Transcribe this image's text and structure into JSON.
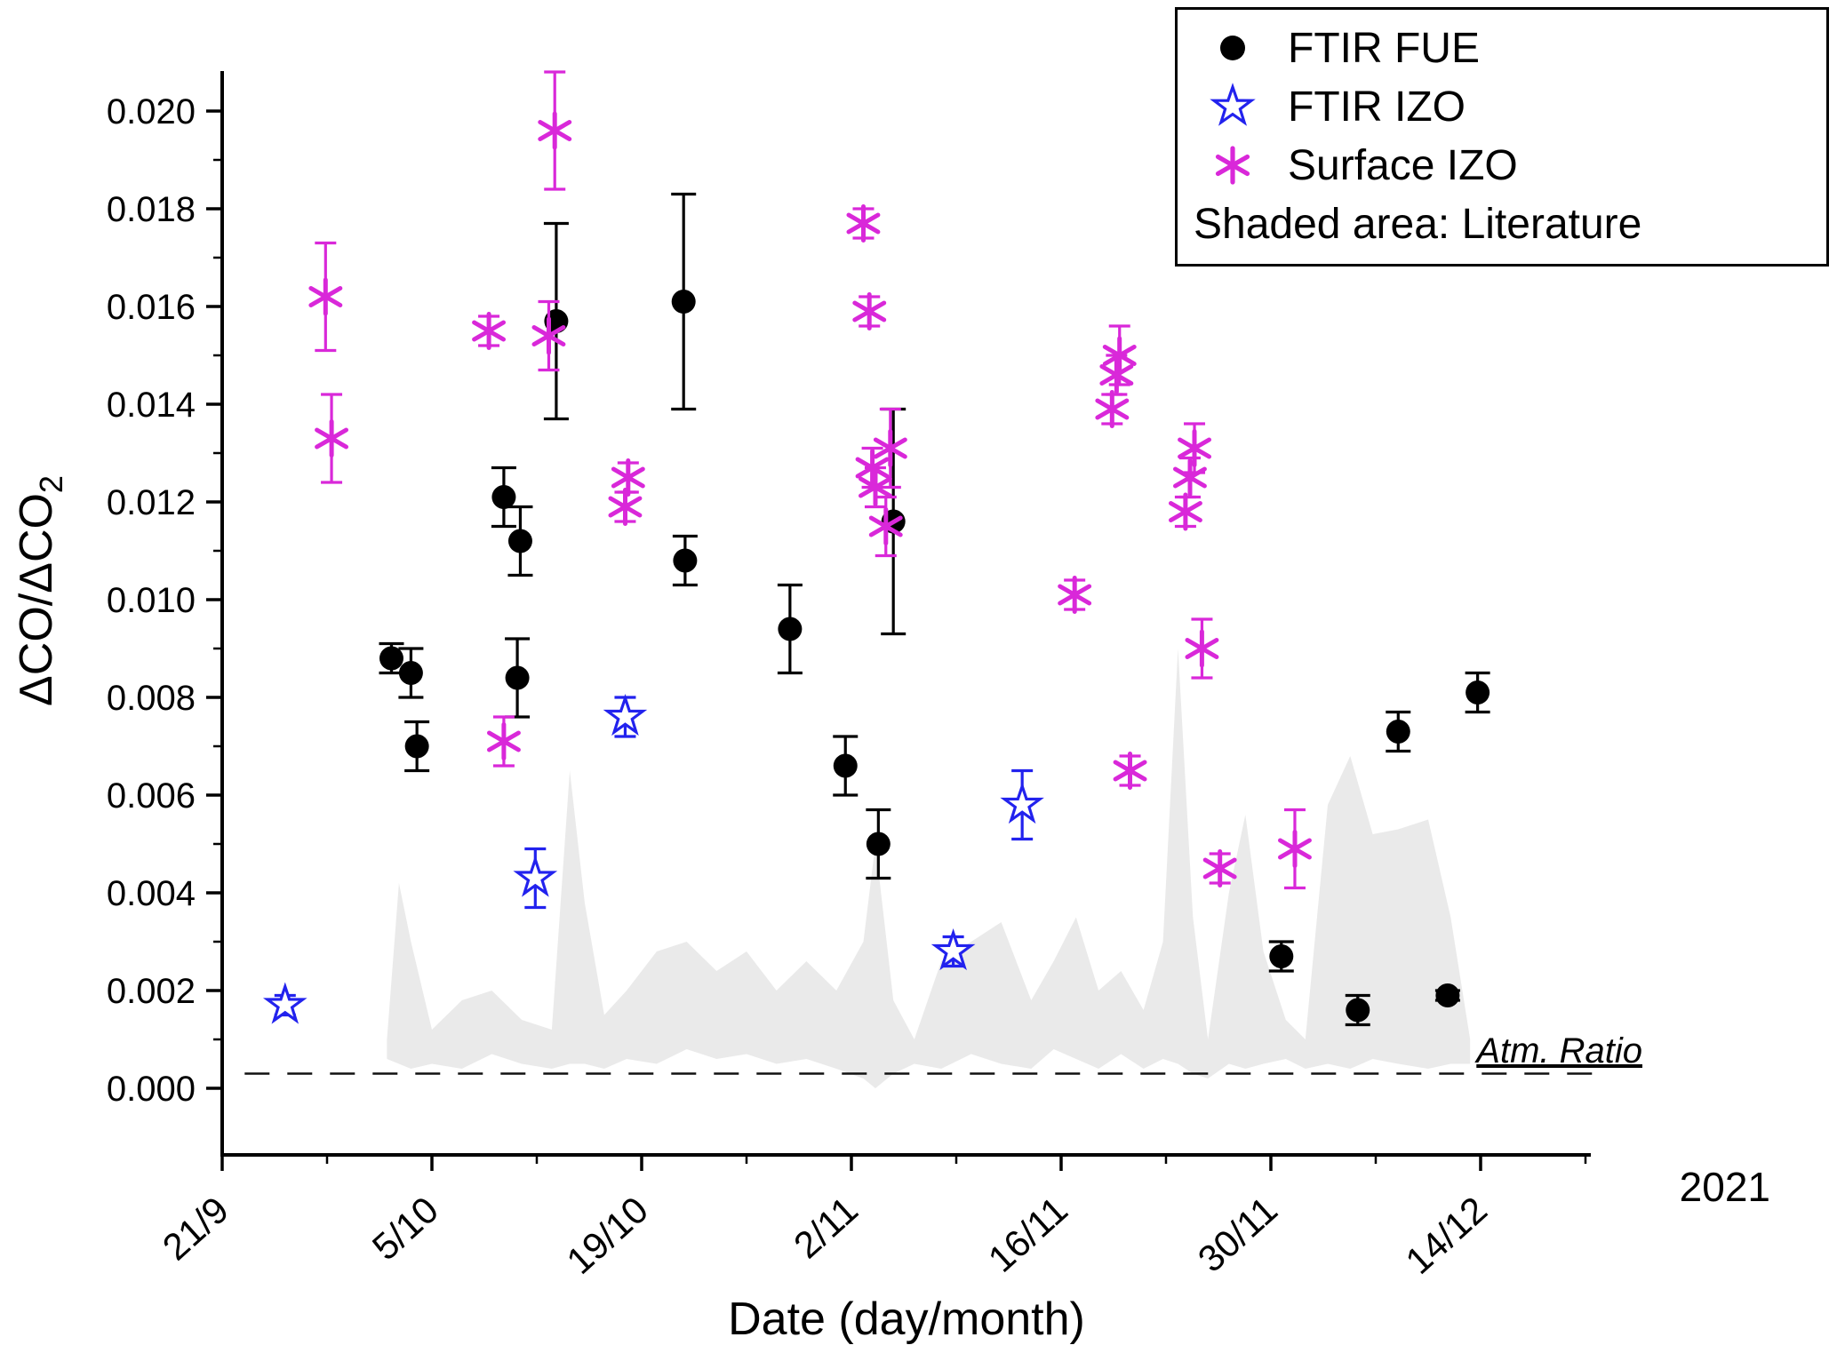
{
  "figure": {
    "year_label": "2021",
    "atm_ratio_label": "Atm. Ratio"
  },
  "axes": {
    "x_label": "Date (day/month)",
    "y_label_prefix": "ΔCO/ΔCO",
    "y_label_sub": "2"
  },
  "legend": {
    "items": [
      {
        "label": "FTIR FUE",
        "marker": "filled-circle-icon",
        "color": "#000000"
      },
      {
        "label": "FTIR IZO",
        "marker": "open-star-icon",
        "color": "#2222ee"
      },
      {
        "label": "Surface IZO",
        "marker": "asterisk-icon",
        "color": "#d928d9"
      },
      {
        "label": "Shaded area: Literature",
        "marker": "none"
      }
    ]
  },
  "chart_data": {
    "type": "scatter",
    "title": "",
    "xlabel": "Date (day/month)",
    "ylabel": "ΔCO/ΔCO2",
    "x_unit": "days since 21/9/2021",
    "ylim": [
      -0.0014,
      0.0208
    ],
    "grid": false,
    "legend_position": "top-right",
    "x_ticks": [
      {
        "day": 0,
        "label": "21/9"
      },
      {
        "day": 14,
        "label": "5/10"
      },
      {
        "day": 28,
        "label": "19/10"
      },
      {
        "day": 42,
        "label": "2/11"
      },
      {
        "day": 56,
        "label": "16/11"
      },
      {
        "day": 70,
        "label": "30/11"
      },
      {
        "day": 84,
        "label": "14/12"
      }
    ],
    "y_ticks": [
      {
        "value": 0.0,
        "label": "0.000"
      },
      {
        "value": 0.002,
        "label": "0.002"
      },
      {
        "value": 0.004,
        "label": "0.004"
      },
      {
        "value": 0.006,
        "label": "0.006"
      },
      {
        "value": 0.008,
        "label": "0.008"
      },
      {
        "value": 0.01,
        "label": "0.010"
      },
      {
        "value": 0.012,
        "label": "0.012"
      },
      {
        "value": 0.014,
        "label": "0.014"
      },
      {
        "value": 0.016,
        "label": "0.016"
      },
      {
        "value": 0.018,
        "label": "0.018"
      },
      {
        "value": 0.02,
        "label": "0.020"
      }
    ],
    "series": [
      {
        "name": "FTIR FUE",
        "marker": "filled-circle",
        "color": "#000000",
        "points": [
          {
            "day": 11.3,
            "value": 0.0088,
            "err": 0.0003
          },
          {
            "day": 12.6,
            "value": 0.0085,
            "err": 0.0005
          },
          {
            "day": 13.0,
            "value": 0.007,
            "err": 0.0005
          },
          {
            "day": 18.8,
            "value": 0.0121,
            "err": 0.0006
          },
          {
            "day": 19.7,
            "value": 0.0084,
            "err": 0.0008
          },
          {
            "day": 19.9,
            "value": 0.0112,
            "err": 0.0007
          },
          {
            "day": 22.3,
            "value": 0.0157,
            "err": 0.002
          },
          {
            "day": 30.8,
            "value": 0.0161,
            "err": 0.0022
          },
          {
            "day": 30.9,
            "value": 0.0108,
            "err": 0.0005
          },
          {
            "day": 37.9,
            "value": 0.0094,
            "err": 0.0009
          },
          {
            "day": 41.6,
            "value": 0.0066,
            "err": 0.0006
          },
          {
            "day": 43.8,
            "value": 0.005,
            "err": 0.0007
          },
          {
            "day": 44.8,
            "value": 0.0116,
            "err": 0.0023
          },
          {
            "day": 70.7,
            "value": 0.0027,
            "err": 0.0003
          },
          {
            "day": 75.8,
            "value": 0.0016,
            "err": 0.0003
          },
          {
            "day": 78.5,
            "value": 0.0073,
            "err": 0.0004
          },
          {
            "day": 81.8,
            "value": 0.0019,
            "err": 0.0001
          },
          {
            "day": 83.8,
            "value": 0.0081,
            "err": 0.0004
          }
        ]
      },
      {
        "name": "FTIR IZO",
        "marker": "open-star",
        "color": "#2222ee",
        "points": [
          {
            "day": 4.2,
            "value": 0.0017,
            "err": 0.0002
          },
          {
            "day": 20.9,
            "value": 0.0043,
            "err": 0.0006
          },
          {
            "day": 26.9,
            "value": 0.0076,
            "err": 0.0004
          },
          {
            "day": 48.8,
            "value": 0.0028,
            "err": 0.0003
          },
          {
            "day": 53.4,
            "value": 0.0058,
            "err": 0.0007
          }
        ]
      },
      {
        "name": "Surface IZO",
        "marker": "asterisk",
        "color": "#d928d9",
        "points": [
          {
            "day": 6.9,
            "value": 0.0162,
            "err": 0.0011
          },
          {
            "day": 7.3,
            "value": 0.0133,
            "err": 0.0009
          },
          {
            "day": 17.8,
            "value": 0.0155,
            "err": 0.0003
          },
          {
            "day": 18.8,
            "value": 0.0071,
            "err": 0.0005
          },
          {
            "day": 21.8,
            "value": 0.0154,
            "err": 0.0007
          },
          {
            "day": 22.2,
            "value": 0.0196,
            "err": 0.0012
          },
          {
            "day": 26.9,
            "value": 0.0119,
            "err": 0.0003
          },
          {
            "day": 27.1,
            "value": 0.0125,
            "err": 0.0003
          },
          {
            "day": 42.8,
            "value": 0.0177,
            "err": 0.0003
          },
          {
            "day": 43.2,
            "value": 0.0159,
            "err": 0.0003
          },
          {
            "day": 43.4,
            "value": 0.0127,
            "err": 0.0004
          },
          {
            "day": 43.6,
            "value": 0.0123,
            "err": 0.0004
          },
          {
            "day": 44.3,
            "value": 0.0115,
            "err": 0.0006
          },
          {
            "day": 44.6,
            "value": 0.0131,
            "err": 0.0008
          },
          {
            "day": 56.9,
            "value": 0.0101,
            "err": 0.0003
          },
          {
            "day": 59.4,
            "value": 0.0139,
            "err": 0.0003
          },
          {
            "day": 59.7,
            "value": 0.0146,
            "err": 0.0004
          },
          {
            "day": 59.9,
            "value": 0.015,
            "err": 0.0006
          },
          {
            "day": 60.6,
            "value": 0.0065,
            "err": 0.0003
          },
          {
            "day": 64.3,
            "value": 0.0118,
            "err": 0.0003
          },
          {
            "day": 64.6,
            "value": 0.0125,
            "err": 0.0004
          },
          {
            "day": 64.9,
            "value": 0.0131,
            "err": 0.0005
          },
          {
            "day": 65.4,
            "value": 0.009,
            "err": 0.0006
          },
          {
            "day": 66.6,
            "value": 0.0045,
            "err": 0.0003
          },
          {
            "day": 71.6,
            "value": 0.0049,
            "err": 0.0008
          }
        ]
      }
    ],
    "literature_band": {
      "label": "Shaded area: Literature",
      "color": "#eaeaea",
      "points": [
        {
          "day": 11.0,
          "low": 0.0006,
          "high": 0.001
        },
        {
          "day": 11.8,
          "low": 0.0005,
          "high": 0.0042
        },
        {
          "day": 12.6,
          "low": 0.0004,
          "high": 0.003
        },
        {
          "day": 14.0,
          "low": 0.0005,
          "high": 0.0012
        },
        {
          "day": 16.0,
          "low": 0.0004,
          "high": 0.0018
        },
        {
          "day": 18.0,
          "low": 0.0007,
          "high": 0.002
        },
        {
          "day": 20.0,
          "low": 0.0005,
          "high": 0.0014
        },
        {
          "day": 22.0,
          "low": 0.0004,
          "high": 0.0012
        },
        {
          "day": 23.2,
          "low": 0.0005,
          "high": 0.0065
        },
        {
          "day": 24.2,
          "low": 0.0005,
          "high": 0.0038
        },
        {
          "day": 25.5,
          "low": 0.0004,
          "high": 0.0015
        },
        {
          "day": 27.0,
          "low": 0.0006,
          "high": 0.002
        },
        {
          "day": 29.0,
          "low": 0.0005,
          "high": 0.0028
        },
        {
          "day": 31.0,
          "low": 0.0008,
          "high": 0.003
        },
        {
          "day": 33.0,
          "low": 0.0006,
          "high": 0.0024
        },
        {
          "day": 35.0,
          "low": 0.0007,
          "high": 0.0028
        },
        {
          "day": 37.0,
          "low": 0.0005,
          "high": 0.002
        },
        {
          "day": 39.0,
          "low": 0.0006,
          "high": 0.0026
        },
        {
          "day": 41.0,
          "low": 0.0004,
          "high": 0.002
        },
        {
          "day": 42.8,
          "low": 0.0002,
          "high": 0.003
        },
        {
          "day": 43.6,
          "low": 0.0,
          "high": 0.005
        },
        {
          "day": 44.8,
          "low": 0.0003,
          "high": 0.0018
        },
        {
          "day": 46.2,
          "low": 0.0005,
          "high": 0.001
        },
        {
          "day": 48.0,
          "low": 0.0004,
          "high": 0.0026
        },
        {
          "day": 50.0,
          "low": 0.0007,
          "high": 0.003
        },
        {
          "day": 52.0,
          "low": 0.0005,
          "high": 0.0034
        },
        {
          "day": 54.0,
          "low": 0.0004,
          "high": 0.0018
        },
        {
          "day": 55.5,
          "low": 0.0008,
          "high": 0.0026
        },
        {
          "day": 57.0,
          "low": 0.0006,
          "high": 0.0035
        },
        {
          "day": 58.5,
          "low": 0.0004,
          "high": 0.002
        },
        {
          "day": 60.0,
          "low": 0.0007,
          "high": 0.0024
        },
        {
          "day": 61.5,
          "low": 0.0004,
          "high": 0.0016
        },
        {
          "day": 62.8,
          "low": 0.0006,
          "high": 0.003
        },
        {
          "day": 63.8,
          "low": 0.0005,
          "high": 0.009
        },
        {
          "day": 64.8,
          "low": 0.0003,
          "high": 0.0035
        },
        {
          "day": 65.8,
          "low": 0.0002,
          "high": 0.001
        },
        {
          "day": 67.2,
          "low": 0.0005,
          "high": 0.004
        },
        {
          "day": 68.3,
          "low": 0.0004,
          "high": 0.0056
        },
        {
          "day": 69.5,
          "low": 0.0005,
          "high": 0.0028
        },
        {
          "day": 71.0,
          "low": 0.0006,
          "high": 0.0014
        },
        {
          "day": 72.3,
          "low": 0.0004,
          "high": 0.001
        },
        {
          "day": 73.8,
          "low": 0.0005,
          "high": 0.0058
        },
        {
          "day": 75.3,
          "low": 0.0004,
          "high": 0.0068
        },
        {
          "day": 76.8,
          "low": 0.0006,
          "high": 0.0052
        },
        {
          "day": 78.5,
          "low": 0.0005,
          "high": 0.0053
        },
        {
          "day": 80.5,
          "low": 0.0004,
          "high": 0.0055
        },
        {
          "day": 82.0,
          "low": 0.0005,
          "high": 0.0035
        },
        {
          "day": 83.3,
          "low": 0.0005,
          "high": 0.001
        }
      ]
    },
    "atm_ratio_line": {
      "value": 0.0003,
      "label": "Atm. Ratio",
      "style": "dashed"
    }
  }
}
